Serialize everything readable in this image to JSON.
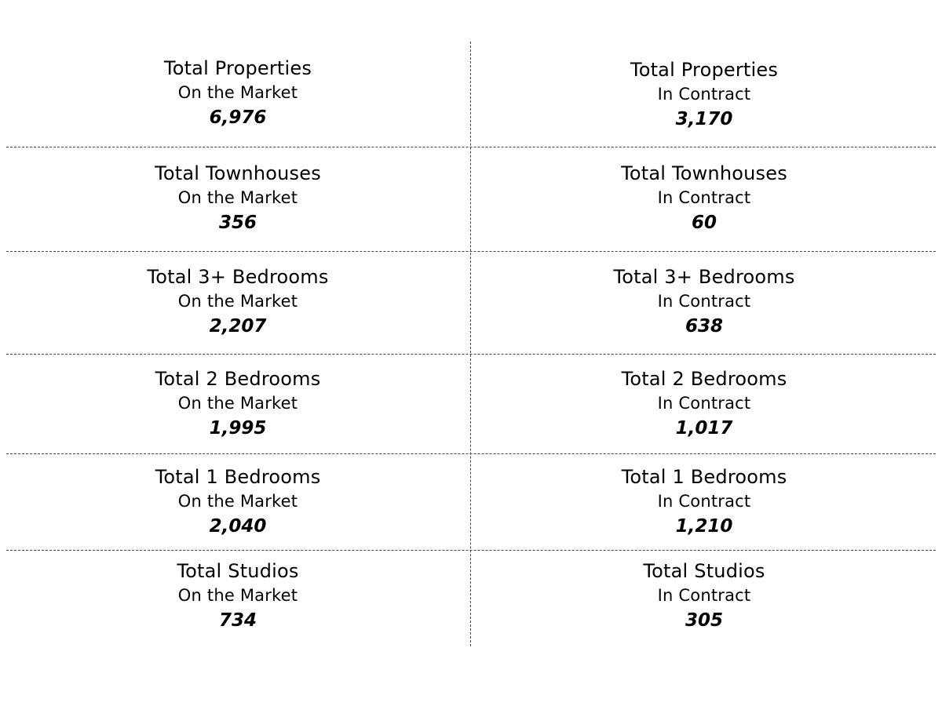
{
  "rows": [
    {
      "left": {
        "title": "Total Properties",
        "status": "On the Market",
        "value": "6,976"
      },
      "right": {
        "title": "Total Properties",
        "status": "In Contract",
        "value": "3,170"
      }
    },
    {
      "left": {
        "title": "Total Townhouses",
        "status": "On the Market",
        "value": "356"
      },
      "right": {
        "title": "Total Townhouses",
        "status": "In Contract",
        "value": "60"
      }
    },
    {
      "left": {
        "title": "Total 3+ Bedrooms",
        "status": "On the Market",
        "value": "2,207"
      },
      "right": {
        "title": "Total 3+ Bedrooms",
        "status": "In Contract",
        "value": "638"
      }
    },
    {
      "left": {
        "title": "Total 2 Bedrooms",
        "status": "On the Market",
        "value": "1,995"
      },
      "right": {
        "title": "Total 2 Bedrooms",
        "status": "In Contract",
        "value": "1,017"
      }
    },
    {
      "left": {
        "title": "Total 1 Bedrooms",
        "status": "On the Market",
        "value": "2,040"
      },
      "right": {
        "title": "Total 1 Bedrooms",
        "status": "In Contract",
        "value": "1,210"
      }
    },
    {
      "left": {
        "title": "Total Studios",
        "status": "On the Market",
        "value": "734"
      },
      "right": {
        "title": "Total Studios",
        "status": "In Contract",
        "value": "305"
      }
    }
  ]
}
